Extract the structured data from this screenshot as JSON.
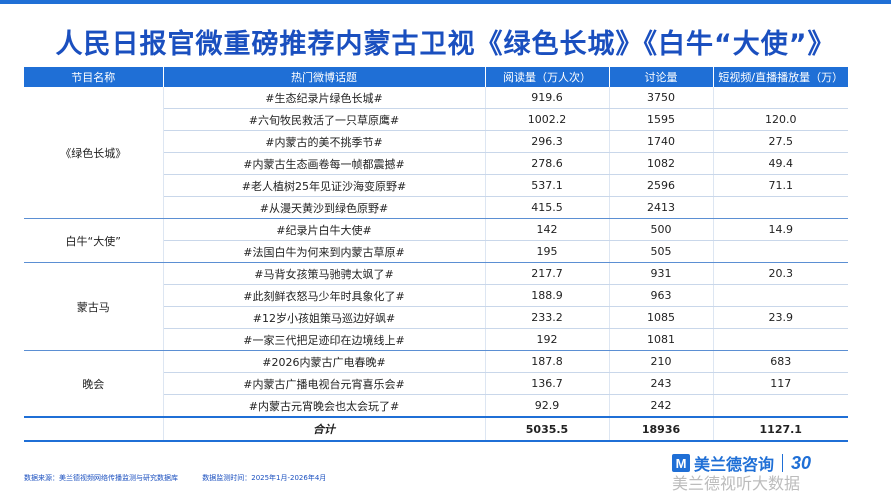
{
  "title": "人民日报官微重磅推荐内蒙古卫视《绿色长城》《白牛“大使”》",
  "headers": [
    "节目名称",
    "热门微博话题",
    "阅读量（万人次）",
    "讨论量",
    "短视频/直播播放量（万）"
  ],
  "groups": [
    {
      "name": "《绿色长城》",
      "rows": [
        {
          "topic": "#生态纪录片绿色长城#",
          "read": "919.6",
          "discuss": "3750",
          "video": ""
        },
        {
          "topic": "#六旬牧民救活了一只草原鹰#",
          "read": "1002.2",
          "discuss": "1595",
          "video": "120.0"
        },
        {
          "topic": "#内蒙古的美不挑季节#",
          "read": "296.3",
          "discuss": "1740",
          "video": "27.5"
        },
        {
          "topic": "#内蒙古生态画卷每一帧都震撼#",
          "read": "278.6",
          "discuss": "1082",
          "video": "49.4"
        },
        {
          "topic": "#老人植树25年见证沙海变原野#",
          "read": "537.1",
          "discuss": "2596",
          "video": "71.1"
        },
        {
          "topic": "#从漫天黄沙到绿色原野#",
          "read": "415.5",
          "discuss": "2413",
          "video": ""
        }
      ]
    },
    {
      "name": "白牛“大使”",
      "rows": [
        {
          "topic": "#纪录片白牛大使#",
          "read": "142",
          "discuss": "500",
          "video": "14.9"
        },
        {
          "topic": "#法国白牛为何来到内蒙古草原#",
          "read": "195",
          "discuss": "505",
          "video": ""
        }
      ]
    },
    {
      "name": "蒙古马",
      "rows": [
        {
          "topic": "#马背女孩策马驰骋太飒了#",
          "read": "217.7",
          "discuss": "931",
          "video": "20.3"
        },
        {
          "topic": "#此刻鲜衣怒马少年时具象化了#",
          "read": "188.9",
          "discuss": "963",
          "video": ""
        },
        {
          "topic": "#12岁小孩姐策马巡边好飒#",
          "read": "233.2",
          "discuss": "1085",
          "video": "23.9"
        },
        {
          "topic": "#一家三代把足迹印在边境线上#",
          "read": "192",
          "discuss": "1081",
          "video": ""
        }
      ]
    },
    {
      "name": "晚会",
      "rows": [
        {
          "topic": "#2026内蒙古广电春晚#",
          "read": "187.8",
          "discuss": "210",
          "video": "683"
        },
        {
          "topic": "#内蒙古广播电视台元宵喜乐会#",
          "read": "136.7",
          "discuss": "243",
          "video": "117"
        },
        {
          "topic": "#内蒙古元宵晚会也太会玩了#",
          "read": "92.9",
          "discuss": "242",
          "video": ""
        }
      ]
    }
  ],
  "total": {
    "label": "合计",
    "read": "5035.5",
    "discuss": "18936",
    "video": "1127.1"
  },
  "footer": {
    "source": "数据来源：美兰德视频网络传播监测与研究数据库",
    "period": "数据监测时间：2025年1月-2026年4月"
  },
  "logo": {
    "mark": "M",
    "text": "美兰德咨询",
    "anniv": "30"
  },
  "watermark": "美兰德视听大数据",
  "colors": {
    "accent": "#1f6fd6",
    "title": "#1a4fbf"
  }
}
